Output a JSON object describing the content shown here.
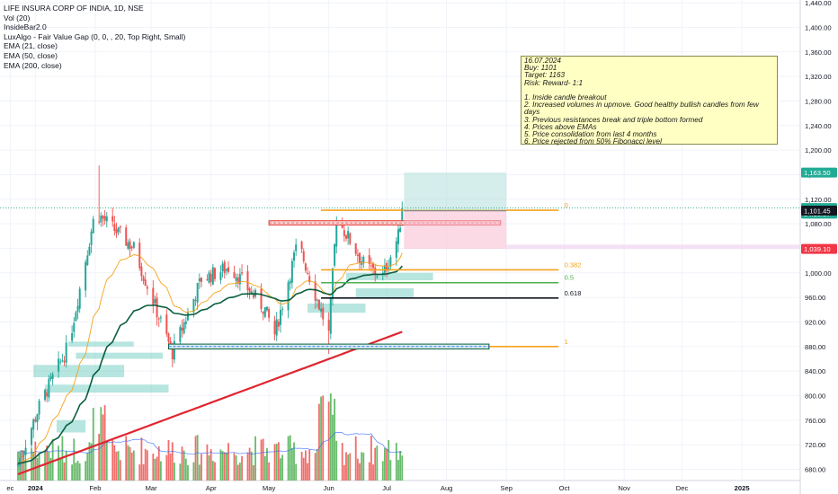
{
  "legend": {
    "title": "LIFE INSURA CORP OF INDIA, 1D, NSE",
    "indicators": [
      "Vol (20)",
      "InsideBar2.0",
      "LuxAlgo - Fair Value Gap (0, 0, , 20, Top Right, Small)",
      "EMA (21, close)",
      "EMA (50, close)",
      "EMA (200, close)"
    ]
  },
  "note": {
    "date": "16.07.2024",
    "buy": "Buy: 1101",
    "target": "Target: 1163",
    "risk": "Risk: Reward- 1:1",
    "points": [
      "1. Inside candle breakout",
      "2. Increased volumes in upmove. Good healthy bullish candles from few days",
      "3. Previous resistances break and triple bottom formed",
      "4. Prices above EMAs",
      "5. Price consolidation from last 4 months",
      "6. Price rejected from 50% Fibonacci level"
    ]
  },
  "price_tags": [
    {
      "label": "1,163.50",
      "value": 1163.5,
      "color": "#22ab94"
    },
    {
      "label": "1,105.70",
      "value": 1105.7,
      "color": "#22ab94"
    },
    {
      "label": "04:10:07",
      "value": 1096.5,
      "color": "#22ab94"
    },
    {
      "label": "1,101.45",
      "value": 1101.45,
      "color": "#131722"
    },
    {
      "label": "1,039.10",
      "value": 1039.1,
      "color": "#f23645"
    }
  ],
  "fib_levels": [
    {
      "label": "0",
      "value": 1102,
      "color": "#f7a21b"
    },
    {
      "label": "0.382",
      "value": 1005,
      "color": "#f7a21b"
    },
    {
      "label": "0.5",
      "value": 984,
      "color": "#4caf50"
    },
    {
      "label": "0.618",
      "value": 959,
      "color": "#131722"
    },
    {
      "label": "1",
      "value": 880,
      "color": "#f7a21b"
    }
  ],
  "chart_data": {
    "type": "candlestick",
    "y_axis": {
      "min": 672,
      "max": 1444,
      "ticks": [
        680,
        720,
        760,
        800,
        840,
        880,
        920,
        960,
        1000,
        1040,
        1080,
        1120,
        1160,
        1200,
        1240,
        1280,
        1320,
        1360,
        1400,
        1440
      ],
      "tick_labels": [
        "680.00",
        "720.00",
        "760.00",
        "800.00",
        "840.00",
        "880.00",
        "920.00",
        "960.00",
        "1,000.00",
        "1,040.00",
        "1,080.00",
        "1,120.00",
        "1,160.00",
        "1,200.00",
        "1,240.00",
        "1,280.00",
        "1,320.00",
        "1,360.00",
        "1,400.00",
        "1,440.00"
      ]
    },
    "x_axis": {
      "labels": [
        "ec",
        "2024",
        "Feb",
        "Mar",
        "Apr",
        "May",
        "Jun",
        "Jul",
        "Aug",
        "Sep",
        "Oct",
        "Nov",
        "Dec",
        "2025"
      ],
      "label_days": [
        -4,
        9,
        40,
        69,
        100,
        130,
        161,
        191,
        222,
        253,
        283,
        314,
        344,
        375
      ]
    },
    "trade_setup": {
      "entry": 1101,
      "target": 1163.5,
      "stop": 1039.1,
      "start_day": 200,
      "end_day": 253
    },
    "key_anchors": [
      {
        "day": 0,
        "close": 690
      },
      {
        "day": 12,
        "close": 790
      },
      {
        "day": 26,
        "close": 880
      },
      {
        "day": 40,
        "close": 1100
      },
      {
        "day": 42,
        "high": 1175
      },
      {
        "day": 60,
        "close": 1040
      },
      {
        "day": 74,
        "close": 920
      },
      {
        "day": 80,
        "close": 870
      },
      {
        "day": 95,
        "close": 990
      },
      {
        "day": 110,
        "close": 1010
      },
      {
        "day": 128,
        "close": 940
      },
      {
        "day": 133,
        "close": 900
      },
      {
        "day": 145,
        "close": 1050
      },
      {
        "day": 161,
        "close": 900
      },
      {
        "day": 165,
        "close": 1090
      },
      {
        "day": 180,
        "close": 1010
      },
      {
        "day": 189,
        "close": 995
      },
      {
        "day": 197,
        "close": 1060
      },
      {
        "day": 199,
        "close": 1105.7
      }
    ],
    "ema_colors": {
      "ema21": "#f7a21b",
      "ema50": "#0b5e3e",
      "ema200": "#e0252f"
    }
  }
}
